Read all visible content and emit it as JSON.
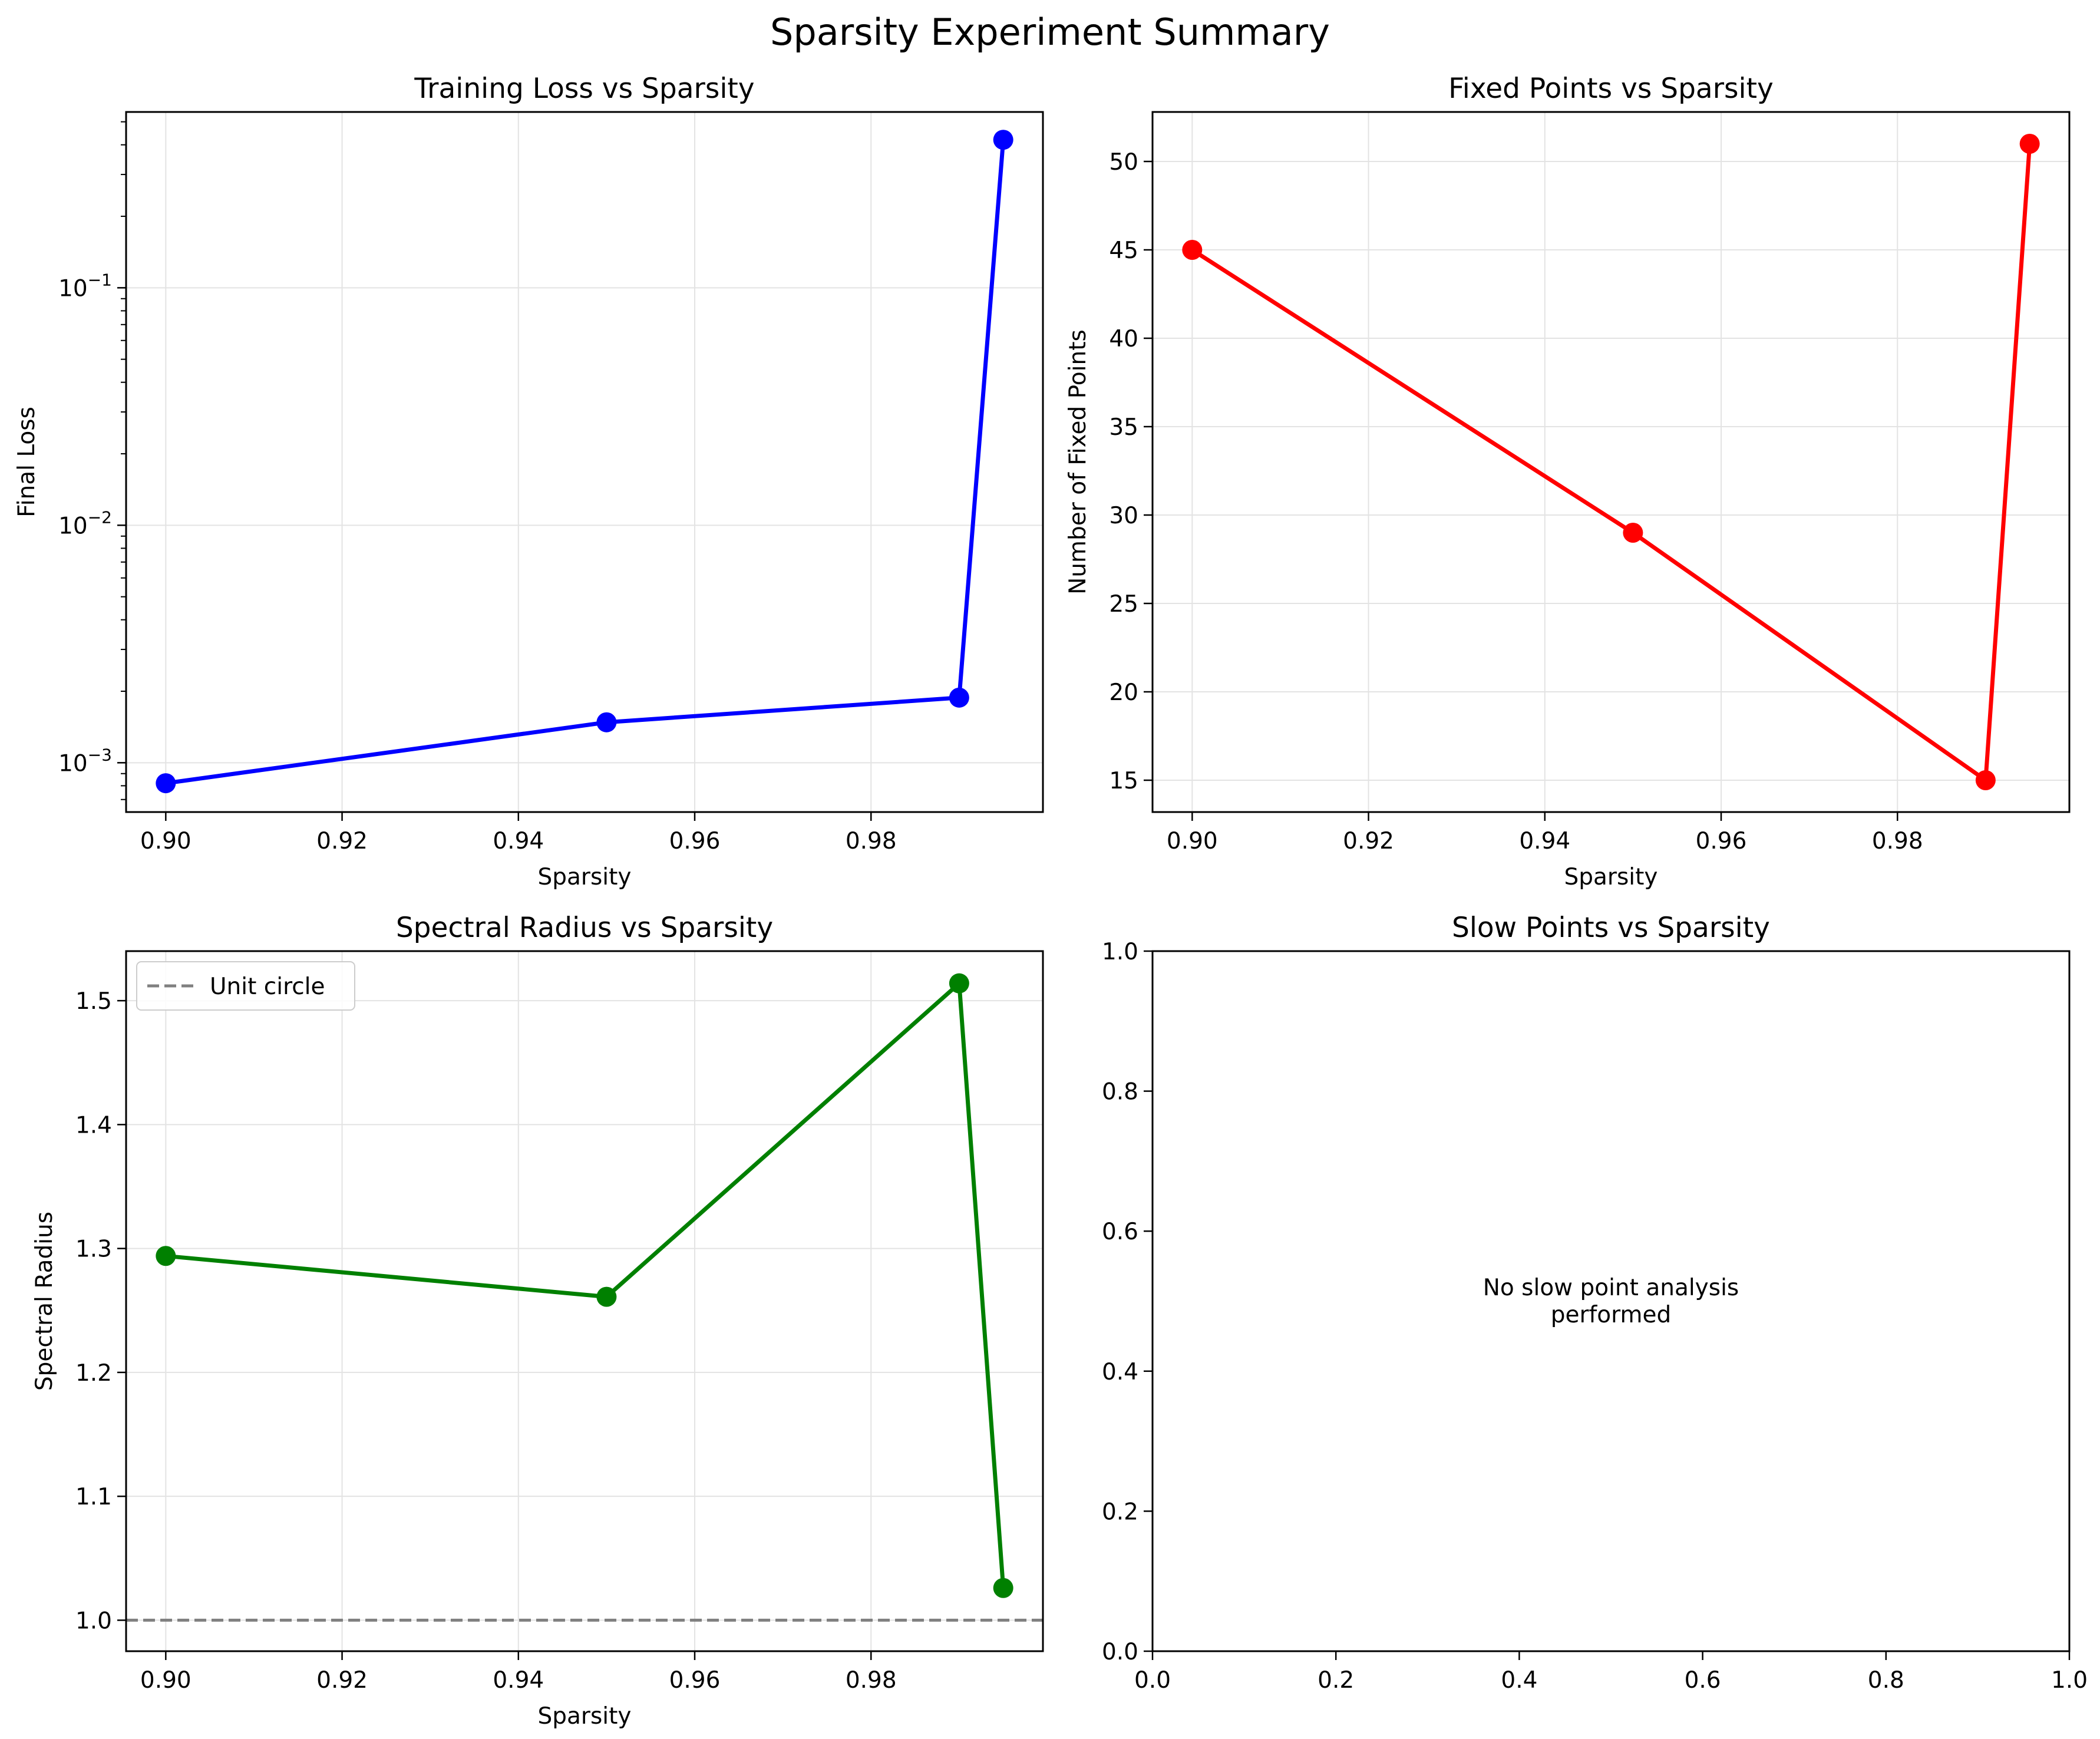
{
  "figure": {
    "title": "Sparsity Experiment Summary"
  },
  "chart_data": [
    {
      "type": "line",
      "title": "Training Loss vs Sparsity",
      "xlabel": "Sparsity",
      "ylabel": "Final Loss",
      "yscale": "log",
      "xlim": [
        0.8955,
        0.9995
      ],
      "ylim": [
        0.00062,
        0.55
      ],
      "xticks": [
        0.9,
        0.92,
        0.94,
        0.96,
        0.98
      ],
      "xtick_labels": [
        "0.90",
        "0.92",
        "0.94",
        "0.96",
        "0.98"
      ],
      "yticks": [
        0.001,
        0.01,
        0.1
      ],
      "ytick_labels": [
        {
          "base": "10",
          "exp": "−3"
        },
        {
          "base": "10",
          "exp": "−2"
        },
        {
          "base": "10",
          "exp": "−1"
        }
      ],
      "grid": true,
      "series": [
        {
          "color": "#0000ff",
          "x": [
            0.9,
            0.95,
            0.99,
            0.995
          ],
          "y": [
            0.00082,
            0.00148,
            0.00188,
            0.42
          ]
        }
      ]
    },
    {
      "type": "line",
      "title": "Fixed Points vs Sparsity",
      "xlabel": "Sparsity",
      "ylabel": "Number of Fixed Points",
      "xlim": [
        0.8955,
        0.9995
      ],
      "ylim": [
        13.2,
        52.8
      ],
      "xticks": [
        0.9,
        0.92,
        0.94,
        0.96,
        0.98
      ],
      "xtick_labels": [
        "0.90",
        "0.92",
        "0.94",
        "0.96",
        "0.98"
      ],
      "yticks": [
        15,
        20,
        25,
        30,
        35,
        40,
        45,
        50
      ],
      "ytick_labels": [
        "15",
        "20",
        "25",
        "30",
        "35",
        "40",
        "45",
        "50"
      ],
      "grid": true,
      "series": [
        {
          "color": "#ff0000",
          "x": [
            0.9,
            0.95,
            0.99,
            0.995
          ],
          "y": [
            45,
            29,
            15,
            51
          ]
        }
      ]
    },
    {
      "type": "line",
      "title": "Spectral Radius vs Sparsity",
      "xlabel": "Sparsity",
      "ylabel": "Spectral Radius",
      "xlim": [
        0.8955,
        0.9995
      ],
      "ylim": [
        0.975,
        1.54
      ],
      "xticks": [
        0.9,
        0.92,
        0.94,
        0.96,
        0.98
      ],
      "xtick_labels": [
        "0.90",
        "0.92",
        "0.94",
        "0.96",
        "0.98"
      ],
      "yticks": [
        1.0,
        1.1,
        1.2,
        1.3,
        1.4,
        1.5
      ],
      "ytick_labels": [
        "1.0",
        "1.1",
        "1.2",
        "1.3",
        "1.4",
        "1.5"
      ],
      "grid": true,
      "legend": {
        "position": "top-left",
        "entries": [
          "Unit circle"
        ]
      },
      "reference_line": {
        "y": 1.0,
        "label": "Unit circle",
        "color": "#808080",
        "style": "dashed"
      },
      "series": [
        {
          "color": "#008000",
          "x": [
            0.9,
            0.95,
            0.99,
            0.995
          ],
          "y": [
            1.294,
            1.261,
            1.514,
            1.026
          ]
        }
      ]
    },
    {
      "type": "line",
      "title": "Slow Points vs Sparsity",
      "xlabel": "",
      "ylabel": "",
      "xlim": [
        0,
        1
      ],
      "ylim": [
        0,
        1
      ],
      "xticks": [
        0.0,
        0.2,
        0.4,
        0.6,
        0.8,
        1.0
      ],
      "xtick_labels": [
        "0.0",
        "0.2",
        "0.4",
        "0.6",
        "0.8",
        "1.0"
      ],
      "yticks": [
        0.0,
        0.2,
        0.4,
        0.6,
        0.8,
        1.0
      ],
      "ytick_labels": [
        "0.0",
        "0.2",
        "0.4",
        "0.6",
        "0.8",
        "1.0"
      ],
      "grid": false,
      "series": [],
      "annotation": {
        "lines": [
          "No slow point analysis",
          "performed"
        ],
        "x": 0.5,
        "y": 0.5
      }
    }
  ]
}
